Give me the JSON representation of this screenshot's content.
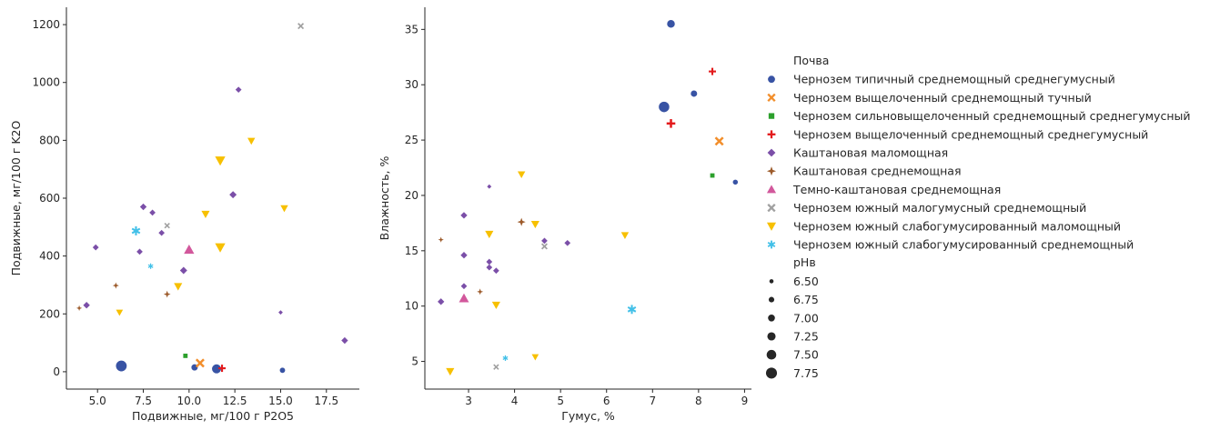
{
  "colors": {
    "Чернозем типичный среднемощный среднегумусный": "#3853a4",
    "Чернозем выщелоченный среднемощный тучный": "#f28e2b",
    "Чернозем сильновыщелоченный среднемощный среднегумусный": "#2ca02c",
    "Чернозем выщелоченный среднемощный среднегумусный": "#e31a1c",
    "Каштановая маломощная": "#7b4fa8",
    "Каштановая среднемощная": "#9c5a2a",
    "Темно-каштановая среднемощная": "#d2589c",
    "Чернозем южный малогумусный среднемощный": "#a0a0a0",
    "Чернозем южный слабогумусированный маломощный": "#f7c000",
    "Чернозем южный слабогумусированный среднемощный": "#42c0e8"
  },
  "markers": {
    "Чернозем типичный среднемощный среднегумусный": "circle",
    "Чернозем выщелоченный среднемощный тучный": "x",
    "Чернозем сильновыщелоченный среднемощный среднегумусный": "square",
    "Чернозем выщелоченный среднемощный среднегумусный": "plus",
    "Каштановая маломощная": "diamond",
    "Каштановая среднемощная": "star4",
    "Темно-каштановая среднемощная": "triangle-up",
    "Чернозем южный малогумусный среднемощный": "x-bold",
    "Чернозем южный слабогумусированный маломощный": "triangle-down",
    "Чернозем южный слабогумусированный среднемощный": "asterisk"
  },
  "chart_data": [
    {
      "type": "scatter",
      "xlabel": "Подвижные, мг/100 г P2O5",
      "ylabel": "Подвижные, мг/100 г K2O",
      "xlim": [
        3.3,
        19.3
      ],
      "ylim": [
        -60,
        1260
      ],
      "xticks": [
        "5.0",
        "7.5",
        "10.0",
        "12.5",
        "15.0",
        "17.5"
      ],
      "xtick_values": [
        5,
        7.5,
        10,
        12.5,
        15,
        17.5
      ],
      "yticks": [
        "0",
        "200",
        "400",
        "600",
        "800",
        "1000",
        "1200"
      ],
      "ytick_values": [
        0,
        200,
        400,
        600,
        800,
        1000,
        1200
      ],
      "points": [
        {
          "soil": "Чернозем типичный среднемощный среднегумусный",
          "x": 6.3,
          "y": 20,
          "ph": 7.8
        },
        {
          "soil": "Чернозем типичный среднемощный среднегумусный",
          "x": 10.3,
          "y": 15,
          "ph": 7.0
        },
        {
          "soil": "Чернозем типичный среднемощный среднегумусный",
          "x": 11.5,
          "y": 10,
          "ph": 7.5
        },
        {
          "soil": "Чернозем типичный среднемощный среднегумусный",
          "x": 15.1,
          "y": 5,
          "ph": 6.8
        },
        {
          "soil": "Чернозем выщелоченный среднемощный тучный",
          "x": 10.6,
          "y": 30,
          "ph": 7.25
        },
        {
          "soil": "Чернозем сильновыщелоченный среднемощный среднегумусный",
          "x": 9.8,
          "y": 55,
          "ph": 6.8
        },
        {
          "soil": "Чернозем выщелоченный среднемощный среднегумусный",
          "x": 11.8,
          "y": 12,
          "ph": 7.0
        },
        {
          "soil": "Каштановая маломощная",
          "x": 4.4,
          "y": 230,
          "ph": 6.9
        },
        {
          "soil": "Каштановая маломощная",
          "x": 4.9,
          "y": 430,
          "ph": 6.8
        },
        {
          "soil": "Каштановая маломощная",
          "x": 7.5,
          "y": 570,
          "ph": 6.9
        },
        {
          "soil": "Каштановая маломощная",
          "x": 8.0,
          "y": 550,
          "ph": 6.8
        },
        {
          "soil": "Каштановая маломощная",
          "x": 7.3,
          "y": 415,
          "ph": 6.8
        },
        {
          "soil": "Каштановая маломощная",
          "x": 8.5,
          "y": 480,
          "ph": 6.8
        },
        {
          "soil": "Каштановая маломощная",
          "x": 9.7,
          "y": 350,
          "ph": 7.0
        },
        {
          "soil": "Каштановая маломощная",
          "x": 12.4,
          "y": 612,
          "ph": 7.0
        },
        {
          "soil": "Каштановая маломощная",
          "x": 12.7,
          "y": 975,
          "ph": 6.8
        },
        {
          "soil": "Каштановая маломощная",
          "x": 15.0,
          "y": 205,
          "ph": 6.5
        },
        {
          "soil": "Каштановая маломощная",
          "x": 18.5,
          "y": 108,
          "ph": 6.9
        },
        {
          "soil": "Каштановая среднемощная",
          "x": 4.0,
          "y": 220,
          "ph": 6.6
        },
        {
          "soil": "Каштановая среднемощная",
          "x": 6.0,
          "y": 298,
          "ph": 6.7
        },
        {
          "soil": "Каштановая среднемощная",
          "x": 8.8,
          "y": 268,
          "ph": 6.8
        },
        {
          "soil": "Темно-каштановая среднемощная",
          "x": 10.0,
          "y": 422,
          "ph": 7.3
        },
        {
          "soil": "Чернозем южный малогумусный среднемощный",
          "x": 8.8,
          "y": 505,
          "ph": 6.7
        },
        {
          "soil": "Чернозем южный малогумусный среднемощный",
          "x": 16.1,
          "y": 1195,
          "ph": 6.8
        },
        {
          "soil": "Чернозем южный слабогумусированный маломощный",
          "x": 6.2,
          "y": 205,
          "ph": 6.8
        },
        {
          "soil": "Чернозем южный слабогумусированный маломощный",
          "x": 9.4,
          "y": 295,
          "ph": 7.0
        },
        {
          "soil": "Чернозем южный слабогумусированный маломощный",
          "x": 10.9,
          "y": 545,
          "ph": 7.0
        },
        {
          "soil": "Чернозем южный слабогумусированный маломощный",
          "x": 11.7,
          "y": 430,
          "ph": 7.3
        },
        {
          "soil": "Чернозем южный слабогумусированный маломощный",
          "x": 11.7,
          "y": 730,
          "ph": 7.3
        },
        {
          "soil": "Чернозем южный слабогумусированный маломощный",
          "x": 13.4,
          "y": 798,
          "ph": 6.9
        },
        {
          "soil": "Чернозем южный слабогумусированный маломощный",
          "x": 15.2,
          "y": 565,
          "ph": 6.9
        },
        {
          "soil": "Чернозем южный слабогумусированный среднемощный",
          "x": 7.1,
          "y": 487,
          "ph": 7.3
        },
        {
          "soil": "Чернозем южный слабогумусированный среднемощный",
          "x": 7.9,
          "y": 365,
          "ph": 6.7
        }
      ]
    },
    {
      "type": "scatter",
      "xlabel": "Гумус, %",
      "ylabel": "Влажность, %",
      "xlim": [
        2.05,
        9.15
      ],
      "ylim": [
        2.5,
        37
      ],
      "xticks": [
        "3",
        "4",
        "5",
        "6",
        "7",
        "8",
        "9"
      ],
      "xtick_values": [
        3,
        4,
        5,
        6,
        7,
        8,
        9
      ],
      "yticks": [
        "5",
        "10",
        "15",
        "20",
        "25",
        "30",
        "35"
      ],
      "ytick_values": [
        5,
        10,
        15,
        20,
        25,
        30,
        35
      ],
      "points": [
        {
          "soil": "Чернозем типичный среднемощный среднегумусный",
          "x": 7.4,
          "y": 35.5,
          "ph": 7.25
        },
        {
          "soil": "Чернозем типичный среднемощный среднегумусный",
          "x": 7.9,
          "y": 29.2,
          "ph": 7.0
        },
        {
          "soil": "Чернозем типичный среднемощный среднегумусный",
          "x": 7.25,
          "y": 28.0,
          "ph": 7.75
        },
        {
          "soil": "Чернозем типичный среднемощный среднегумусный",
          "x": 8.8,
          "y": 21.2,
          "ph": 6.75
        },
        {
          "soil": "Чернозем выщелоченный среднемощный тучный",
          "x": 8.45,
          "y": 24.9,
          "ph": 7.25
        },
        {
          "soil": "Чернозем сильновыщелоченный среднемощный среднегумусный",
          "x": 8.3,
          "y": 21.8,
          "ph": 6.8
        },
        {
          "soil": "Чернозем выщелоченный среднемощный среднегумусный",
          "x": 8.3,
          "y": 31.2,
          "ph": 7.0
        },
        {
          "soil": "Чернозем выщелоченный среднемощный среднегумусный",
          "x": 7.4,
          "y": 26.5,
          "ph": 7.25
        },
        {
          "soil": "Каштановая маломощная",
          "x": 2.4,
          "y": 10.4,
          "ph": 6.9
        },
        {
          "soil": "Каштановая маломощная",
          "x": 2.9,
          "y": 18.2,
          "ph": 6.9
        },
        {
          "soil": "Каштановая маломощная",
          "x": 2.9,
          "y": 14.6,
          "ph": 6.9
        },
        {
          "soil": "Каштановая маломощная",
          "x": 2.9,
          "y": 11.8,
          "ph": 6.8
        },
        {
          "soil": "Каштановая маломощная",
          "x": 3.45,
          "y": 20.8,
          "ph": 6.5
        },
        {
          "soil": "Каштановая маломощная",
          "x": 3.45,
          "y": 14.0,
          "ph": 6.8
        },
        {
          "soil": "Каштановая маломощная",
          "x": 3.45,
          "y": 13.5,
          "ph": 6.8
        },
        {
          "soil": "Каштановая маломощная",
          "x": 3.6,
          "y": 13.2,
          "ph": 6.8
        },
        {
          "soil": "Каштановая маломощная",
          "x": 4.65,
          "y": 15.9,
          "ph": 6.8
        },
        {
          "soil": "Каштановая маломощная",
          "x": 5.15,
          "y": 15.7,
          "ph": 6.8
        },
        {
          "soil": "Каштановая среднемощная",
          "x": 2.4,
          "y": 16.0,
          "ph": 6.6
        },
        {
          "soil": "Каштановая среднемощная",
          "x": 3.25,
          "y": 11.3,
          "ph": 6.7
        },
        {
          "soil": "Каштановая среднемощная",
          "x": 4.15,
          "y": 17.6,
          "ph": 7.0
        },
        {
          "soil": "Темно-каштановая среднемощная",
          "x": 2.9,
          "y": 10.7,
          "ph": 7.25
        },
        {
          "soil": "Чернозем южный малогумусный среднемощный",
          "x": 3.6,
          "y": 4.5,
          "ph": 6.7
        },
        {
          "soil": "Чернозем южный малогумусный среднемощный",
          "x": 4.65,
          "y": 15.4,
          "ph": 6.8
        },
        {
          "soil": "Чернозем южный слабогумусированный маломощный",
          "x": 2.6,
          "y": 4.1,
          "ph": 7.0
        },
        {
          "soil": "Чернозем южный слабогумусированный маломощный",
          "x": 3.45,
          "y": 16.5,
          "ph": 7.0
        },
        {
          "soil": "Чернозем южный слабогумусированный маломощный",
          "x": 3.6,
          "y": 10.1,
          "ph": 7.0
        },
        {
          "soil": "Чернозем южный слабогумусированный маломощный",
          "x": 4.15,
          "y": 21.9,
          "ph": 6.9
        },
        {
          "soil": "Чернозем южный слабогумусированный маломощный",
          "x": 4.45,
          "y": 17.4,
          "ph": 7.0
        },
        {
          "soil": "Чернозем южный слабогумусированный маломощный",
          "x": 4.45,
          "y": 5.4,
          "ph": 6.8
        },
        {
          "soil": "Чернозем южный слабогумусированный маломощный",
          "x": 6.4,
          "y": 16.4,
          "ph": 6.9
        },
        {
          "soil": "Чернозем южный слабогумусированный среднемощный",
          "x": 3.8,
          "y": 5.3,
          "ph": 6.7
        },
        {
          "soil": "Чернозем южный слабогумусированный среднемощный",
          "x": 6.55,
          "y": 9.7,
          "ph": 7.3
        }
      ]
    }
  ],
  "legend": {
    "hue_title": "Почва",
    "hue_items": [
      "Чернозем типичный среднемощный среднегумусный",
      "Чернозем выщелоченный среднемощный тучный",
      "Чернозем сильновыщелоченный среднемощный среднегумусный",
      "Чернозем выщелоченный среднемощный среднегумусный",
      "Каштановая маломощная",
      "Каштановая среднемощная",
      "Темно-каштановая среднемощная",
      "Чернозем южный малогумусный среднемощный",
      "Чернозем южный слабогумусированный маломощный",
      "Чернозем южный слабогумусированный среднемощный"
    ],
    "size_title": "pHв",
    "size_items": [
      {
        "label": "6.50",
        "value": 6.5
      },
      {
        "label": "6.75",
        "value": 6.75
      },
      {
        "label": "7.00",
        "value": 7.0
      },
      {
        "label": "7.25",
        "value": 7.25
      },
      {
        "label": "7.50",
        "value": 7.5
      },
      {
        "label": "7.75",
        "value": 7.75
      }
    ],
    "placement": "right"
  }
}
